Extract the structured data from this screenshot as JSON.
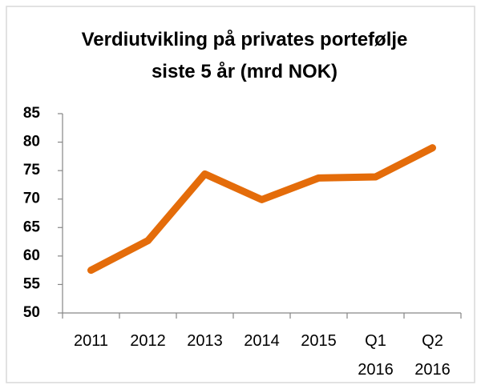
{
  "chart_data": {
    "type": "line",
    "title": "Verdiutvikling på privates portefølje siste 5 år (mrd NOK)",
    "categories": [
      "2011",
      "2012",
      "2013",
      "2014",
      "2015",
      "Q1 2016",
      "Q2 2016"
    ],
    "series": [
      {
        "name": "Verdiutvikling",
        "color": "#e46c0a",
        "values": [
          57.5,
          62.7,
          74.4,
          69.9,
          73.7,
          73.9,
          79.0
        ]
      }
    ],
    "ylim": [
      50,
      85
    ],
    "yticks": [
      50,
      55,
      60,
      65,
      70,
      75,
      80,
      85
    ],
    "grid": false,
    "legend": false
  }
}
